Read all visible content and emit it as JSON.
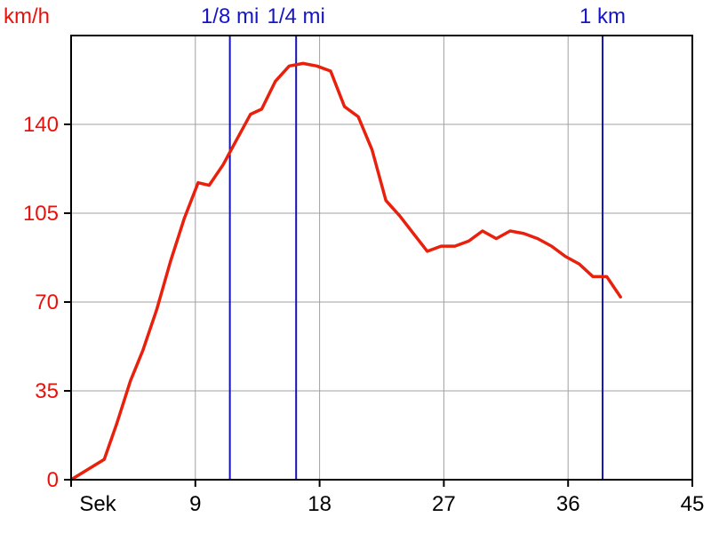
{
  "chart_data": {
    "type": "line",
    "ylabel": "km/h",
    "xlim": [
      0,
      45
    ],
    "ylim": [
      0,
      175
    ],
    "x_ticks": [
      {
        "value": 0,
        "label": "Sek"
      },
      {
        "value": 9,
        "label": "9"
      },
      {
        "value": 18,
        "label": "18"
      },
      {
        "value": 27,
        "label": "27"
      },
      {
        "value": 36,
        "label": "36"
      },
      {
        "value": 45,
        "label": "45"
      }
    ],
    "y_ticks": [
      {
        "value": 0,
        "label": "0"
      },
      {
        "value": 35,
        "label": "35"
      },
      {
        "value": 70,
        "label": "70"
      },
      {
        "value": 105,
        "label": "105"
      },
      {
        "value": 140,
        "label": "140"
      }
    ],
    "grid": true,
    "markers": [
      {
        "label": "1/8 mi",
        "x": 11.5
      },
      {
        "label": "1/4 mi",
        "x": 16.3
      },
      {
        "label": "1 km",
        "x": 38.5
      }
    ],
    "series": [
      {
        "color": "#e8200c",
        "points": [
          [
            0,
            0
          ],
          [
            2.4,
            8
          ],
          [
            3.3,
            22
          ],
          [
            4.3,
            39
          ],
          [
            5.2,
            51
          ],
          [
            6.2,
            67
          ],
          [
            7.2,
            86
          ],
          [
            8.2,
            103
          ],
          [
            9.2,
            117
          ],
          [
            10.0,
            116
          ],
          [
            11.0,
            124
          ],
          [
            12.0,
            134
          ],
          [
            13.0,
            144
          ],
          [
            13.8,
            146
          ],
          [
            14.8,
            157
          ],
          [
            15.8,
            163
          ],
          [
            16.8,
            164
          ],
          [
            17.8,
            163
          ],
          [
            18.8,
            161
          ],
          [
            19.8,
            147
          ],
          [
            20.8,
            143
          ],
          [
            21.8,
            130
          ],
          [
            22.8,
            110
          ],
          [
            23.8,
            104
          ],
          [
            24.8,
            97
          ],
          [
            25.8,
            90
          ],
          [
            26.8,
            92
          ],
          [
            27.8,
            92
          ],
          [
            28.8,
            94
          ],
          [
            29.8,
            98
          ],
          [
            30.8,
            95
          ],
          [
            31.8,
            98
          ],
          [
            32.8,
            97
          ],
          [
            33.8,
            95
          ],
          [
            34.8,
            92
          ],
          [
            35.8,
            88
          ],
          [
            36.8,
            85
          ],
          [
            37.8,
            80
          ],
          [
            38.8,
            80
          ],
          [
            39.8,
            72
          ]
        ]
      }
    ]
  }
}
